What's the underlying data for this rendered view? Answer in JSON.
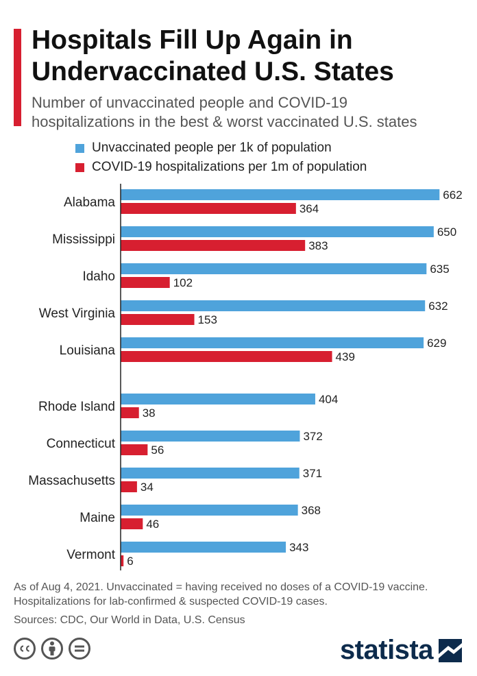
{
  "header": {
    "title_line1": "Hospitals Fill Up Again in",
    "title_line2": "Undervaccinated U.S. States",
    "subtitle_line1": "Number of unvaccinated people and COVID-19",
    "subtitle_line2": "hospitalizations in the best & worst vaccinated U.S. states",
    "accent_color": "#d71f30"
  },
  "chart_data": {
    "type": "bar",
    "orientation": "horizontal",
    "categories": [
      "Alabama",
      "Mississippi",
      "Idaho",
      "West Virginia",
      "Louisiana",
      "Rhode Island",
      "Connecticut",
      "Massachusetts",
      "Maine",
      "Vermont"
    ],
    "groups": [
      [
        "Alabama",
        "Mississippi",
        "Idaho",
        "West Virginia",
        "Louisiana"
      ],
      [
        "Rhode Island",
        "Connecticut",
        "Massachusetts",
        "Maine",
        "Vermont"
      ]
    ],
    "series": [
      {
        "name": "Unvaccinated people per 1k of population",
        "color": "#4fa3db",
        "values": [
          662,
          650,
          635,
          632,
          629,
          404,
          372,
          371,
          368,
          343
        ]
      },
      {
        "name": "COVID-19 hospitalizations per 1m of population",
        "color": "#d71f30",
        "values": [
          364,
          383,
          102,
          153,
          439,
          38,
          56,
          34,
          46,
          6
        ]
      }
    ],
    "xlim": [
      0,
      700
    ],
    "data_labels": true,
    "legend_position": "top",
    "grid": false
  },
  "footer": {
    "note_line1": "As of Aug 4, 2021. Unvaccinated = having received no doses of a COVID-19 vaccine.",
    "note_line2": "Hospitalizations for lab-confirmed & suspected COVID-19 cases.",
    "sources": "Sources: CDC, Our World in Data, U.S. Census",
    "license_icons": [
      "creative-commons-icon",
      "attribution-icon",
      "no-derivatives-icon"
    ],
    "brand": "statista",
    "brand_color": "#0d2b4c"
  }
}
